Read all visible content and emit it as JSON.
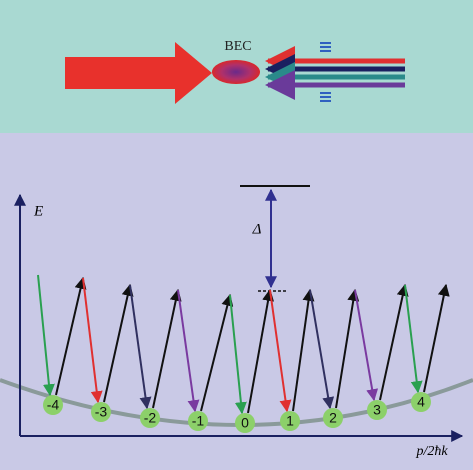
{
  "top": {
    "bec_label": "BEC"
  },
  "plot": {
    "y_axis_label": "E",
    "x_axis_label": "p/2ħk",
    "gap_label": "Δ",
    "states": [
      "-4",
      "-3",
      "-2",
      "-1",
      "0",
      "1",
      "2",
      "3",
      "4"
    ]
  }
}
